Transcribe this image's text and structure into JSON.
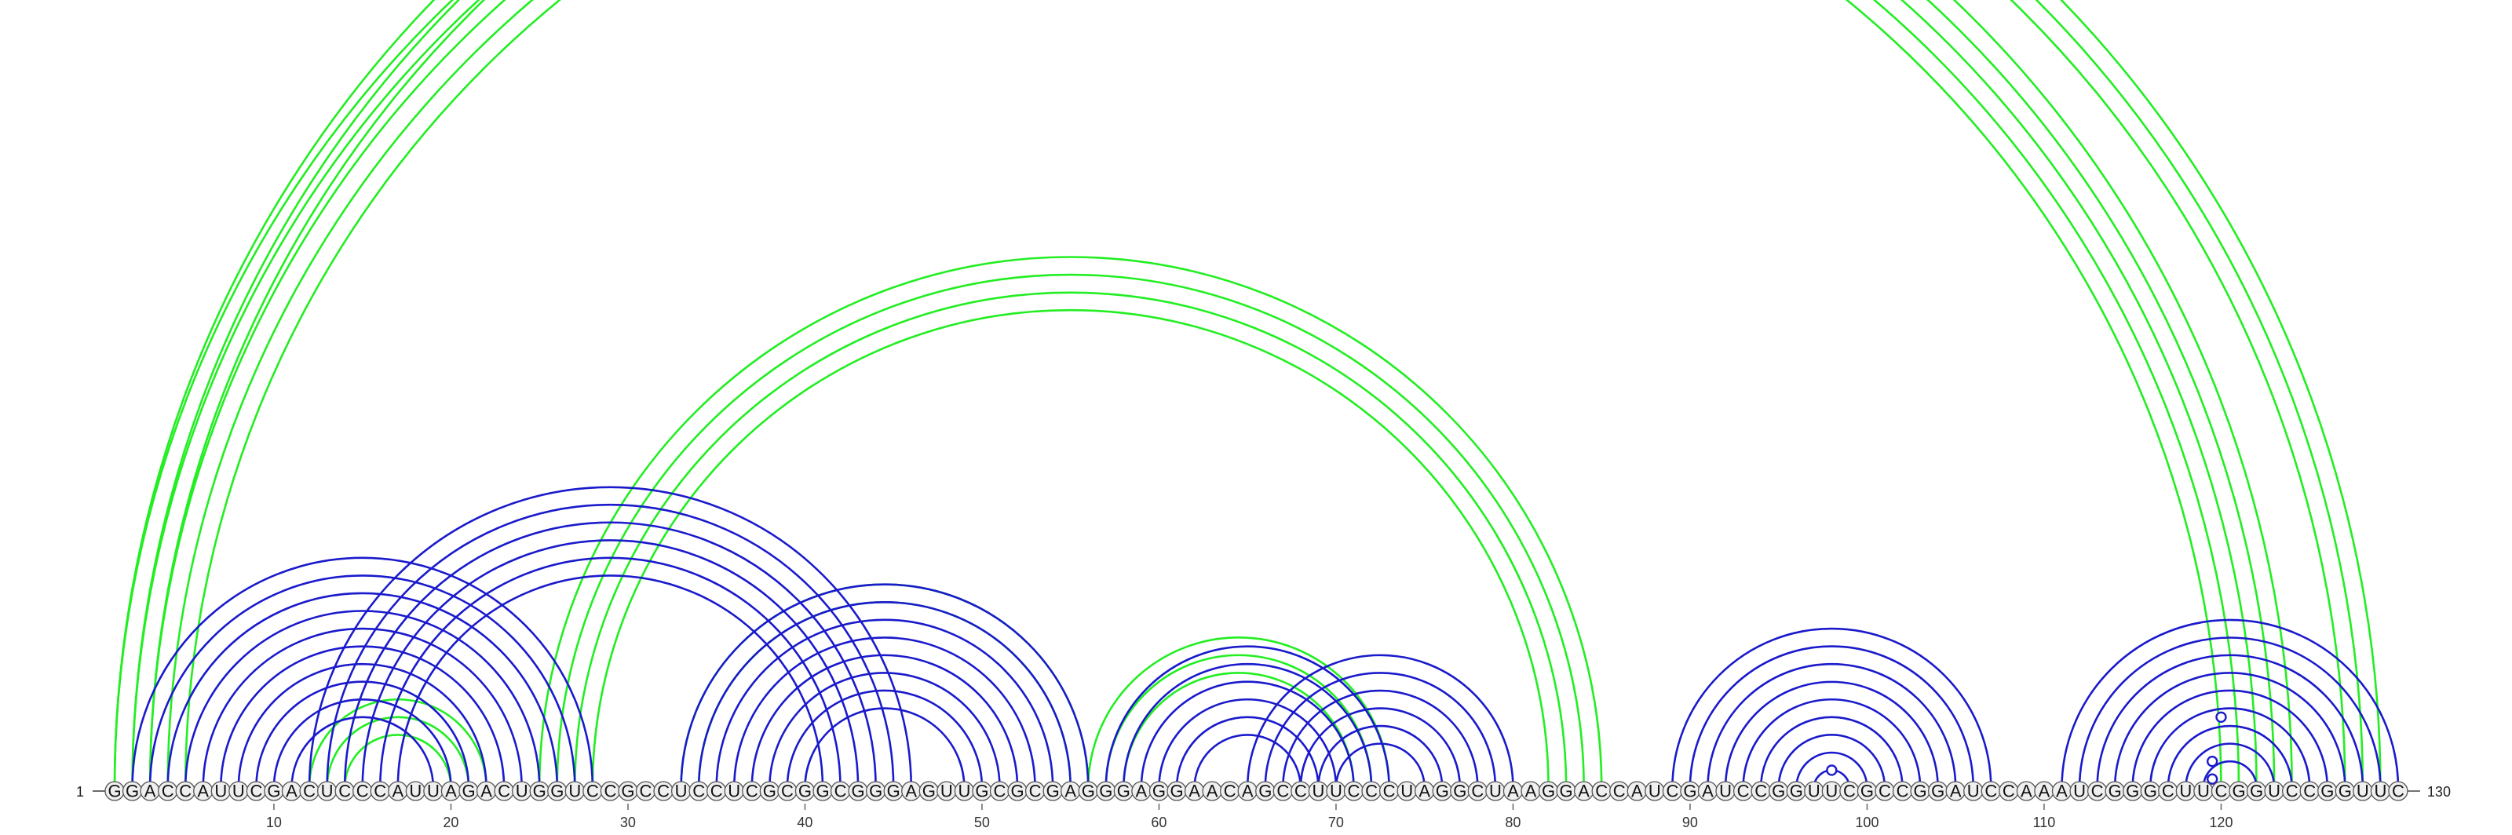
{
  "sequence": "GGACCAUUCGACUCCCAUUAGACUGGUCCGCCUCCUCGCGGCGGGAGUUGCGCGAGGGAGGAACAGCCUUCCCUAGGCUAAGGACCAUCGAUCCGGUUCGCCGGAUCCAAAUCGGGCUUCGGUCCGGUUC",
  "sequence_length": 130,
  "ends": {
    "left": "1",
    "right": "130"
  },
  "ticks": [
    "10",
    "20",
    "30",
    "40",
    "50",
    "60",
    "70",
    "80",
    "90",
    "100",
    "110",
    "120"
  ],
  "colors": {
    "green_arcs": "#22ee22",
    "blue_arcs": "#1a1acc",
    "nucleotide_fill": "#efefef",
    "nucleotide_stroke": "#555555"
  },
  "green_pairs": [
    [
      1,
      124
    ],
    [
      2,
      123
    ],
    [
      3,
      122
    ],
    [
      4,
      121
    ],
    [
      5,
      120
    ],
    [
      1,
      129
    ],
    [
      2,
      128
    ],
    [
      3,
      127
    ],
    [
      12,
      22
    ],
    [
      13,
      21
    ],
    [
      14,
      20
    ],
    [
      25,
      85
    ],
    [
      26,
      84
    ],
    [
      27,
      83
    ],
    [
      28,
      82
    ],
    [
      33,
      56
    ],
    [
      34,
      55
    ],
    [
      56,
      73
    ],
    [
      57,
      72
    ],
    [
      58,
      71
    ]
  ],
  "blue_pairs": [
    [
      2,
      28
    ],
    [
      3,
      27
    ],
    [
      4,
      26
    ],
    [
      5,
      25
    ],
    [
      6,
      24
    ],
    [
      7,
      23
    ],
    [
      8,
      22
    ],
    [
      9,
      21
    ],
    [
      10,
      20
    ],
    [
      11,
      19
    ],
    [
      12,
      46
    ],
    [
      13,
      45
    ],
    [
      14,
      44
    ],
    [
      15,
      43
    ],
    [
      16,
      42
    ],
    [
      17,
      41
    ],
    [
      33,
      56
    ],
    [
      34,
      55
    ],
    [
      35,
      54
    ],
    [
      36,
      53
    ],
    [
      37,
      52
    ],
    [
      38,
      51
    ],
    [
      39,
      50
    ],
    [
      40,
      49
    ],
    [
      57,
      73
    ],
    [
      58,
      72
    ],
    [
      59,
      71
    ],
    [
      60,
      70
    ],
    [
      61,
      69
    ],
    [
      62,
      68
    ],
    [
      65,
      80
    ],
    [
      66,
      79
    ],
    [
      67,
      78
    ],
    [
      68,
      77
    ],
    [
      69,
      76
    ],
    [
      70,
      75
    ],
    [
      89,
      107
    ],
    [
      90,
      106
    ],
    [
      91,
      105
    ],
    [
      92,
      104
    ],
    [
      93,
      103
    ],
    [
      94,
      102
    ],
    [
      95,
      101
    ],
    [
      96,
      100
    ],
    [
      97,
      99
    ],
    [
      111,
      130
    ],
    [
      112,
      129
    ],
    [
      113,
      128
    ],
    [
      114,
      127
    ],
    [
      115,
      126
    ],
    [
      116,
      125
    ],
    [
      117,
      124
    ],
    [
      118,
      123
    ],
    [
      119,
      122
    ]
  ],
  "loop_markers": [
    {
      "color": "green",
      "i": 1,
      "j": 129
    },
    {
      "color": "blue",
      "i": 97,
      "j": 99
    },
    {
      "color": "blue",
      "i": 116,
      "j": 124
    },
    {
      "color": "blue",
      "i": 118,
      "j": 121
    },
    {
      "color": "blue",
      "i": 119,
      "j": 120
    }
  ]
}
